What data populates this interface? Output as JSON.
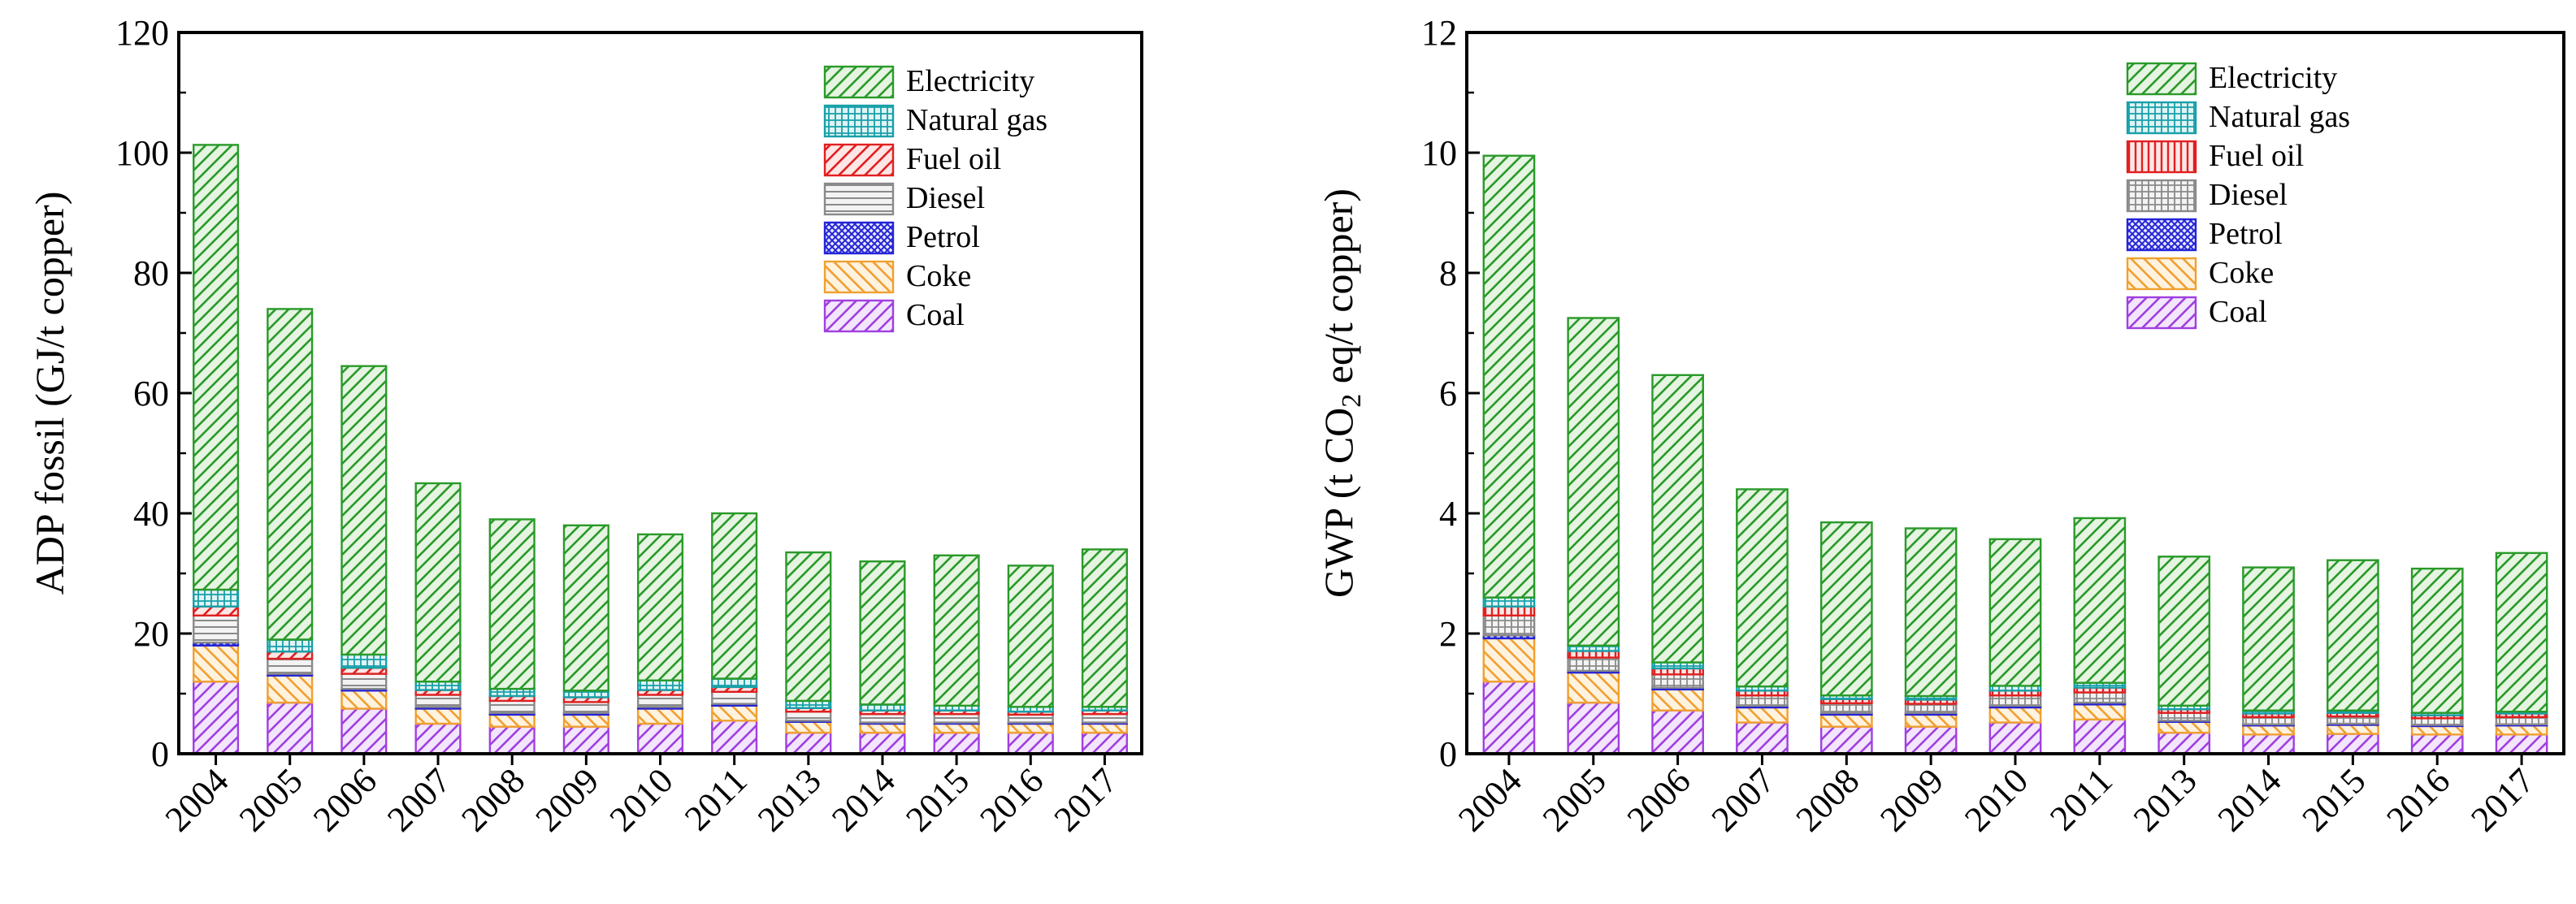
{
  "chart_data": [
    {
      "type": "bar",
      "stacked": true,
      "title": "",
      "ylabel": "ADP fossil (GJ/t copper)",
      "xlabel": "",
      "ylim": [
        0,
        120
      ],
      "yticks": [
        0,
        20,
        40,
        60,
        80,
        100,
        120
      ],
      "legend_position": "top-right",
      "categories": [
        "2004",
        "2005",
        "2006",
        "2007",
        "2008",
        "2009",
        "2010",
        "2011",
        "2013",
        "2014",
        "2015",
        "2016",
        "2017"
      ],
      "series": [
        {
          "name": "Coal",
          "values": [
            12.0,
            8.5,
            7.5,
            5.0,
            4.5,
            4.5,
            5.0,
            5.5,
            3.5,
            3.5,
            3.5,
            3.5,
            3.5
          ]
        },
        {
          "name": "Coke",
          "values": [
            6.0,
            4.5,
            3.0,
            2.5,
            2.0,
            2.0,
            2.5,
            2.5,
            1.8,
            1.5,
            1.5,
            1.5,
            1.5
          ]
        },
        {
          "name": "Petrol",
          "values": [
            0.5,
            0.3,
            0.3,
            0.3,
            0.3,
            0.3,
            0.3,
            0.3,
            0.2,
            0.2,
            0.2,
            0.2,
            0.2
          ]
        },
        {
          "name": "Diesel",
          "values": [
            4.5,
            2.5,
            2.5,
            2.0,
            2.0,
            1.8,
            2.0,
            2.0,
            1.5,
            1.4,
            1.4,
            1.3,
            1.4
          ]
        },
        {
          "name": "Fuel oil",
          "values": [
            1.5,
            1.2,
            1.0,
            0.8,
            0.8,
            0.8,
            0.8,
            0.8,
            0.6,
            0.6,
            0.6,
            0.5,
            0.6
          ]
        },
        {
          "name": "Natural gas",
          "values": [
            2.8,
            2.0,
            2.2,
            1.4,
            1.2,
            1.1,
            1.6,
            1.4,
            1.2,
            1.0,
            0.8,
            0.8,
            0.6
          ]
        },
        {
          "name": "Electricity",
          "values": [
            74.0,
            55.0,
            48.0,
            33.0,
            28.2,
            27.5,
            24.3,
            27.5,
            24.7,
            23.8,
            25.0,
            23.5,
            26.2
          ]
        }
      ]
    },
    {
      "type": "bar",
      "stacked": true,
      "title": "",
      "ylabel_prefix": "GWP (t CO",
      "ylabel_sub": "2",
      "ylabel_suffix": " eq/t copper)",
      "xlabel": "",
      "ylim": [
        0,
        12
      ],
      "yticks": [
        0,
        2,
        4,
        6,
        8,
        10,
        12
      ],
      "legend_position": "top-right",
      "categories": [
        "2004",
        "2005",
        "2006",
        "2007",
        "2008",
        "2009",
        "2010",
        "2011",
        "2013",
        "2014",
        "2015",
        "2016",
        "2017"
      ],
      "series": [
        {
          "name": "Coal",
          "values": [
            1.2,
            0.85,
            0.72,
            0.52,
            0.45,
            0.45,
            0.52,
            0.57,
            0.35,
            0.32,
            0.33,
            0.32,
            0.32
          ]
        },
        {
          "name": "Coke",
          "values": [
            0.72,
            0.5,
            0.35,
            0.25,
            0.2,
            0.2,
            0.25,
            0.25,
            0.18,
            0.15,
            0.15,
            0.14,
            0.15
          ]
        },
        {
          "name": "Petrol",
          "values": [
            0.05,
            0.03,
            0.03,
            0.03,
            0.03,
            0.03,
            0.03,
            0.03,
            0.02,
            0.02,
            0.02,
            0.02,
            0.02
          ]
        },
        {
          "name": "Diesel",
          "values": [
            0.33,
            0.22,
            0.22,
            0.17,
            0.16,
            0.15,
            0.17,
            0.17,
            0.13,
            0.12,
            0.12,
            0.11,
            0.12
          ]
        },
        {
          "name": "Fuel oil",
          "values": [
            0.15,
            0.11,
            0.1,
            0.08,
            0.07,
            0.07,
            0.08,
            0.08,
            0.06,
            0.06,
            0.06,
            0.05,
            0.06
          ]
        },
        {
          "name": "Natural gas",
          "values": [
            0.15,
            0.09,
            0.1,
            0.07,
            0.06,
            0.06,
            0.08,
            0.08,
            0.06,
            0.05,
            0.04,
            0.04,
            0.03
          ]
        },
        {
          "name": "Electricity",
          "values": [
            7.35,
            5.45,
            4.78,
            3.28,
            2.88,
            2.79,
            2.44,
            2.74,
            2.48,
            2.38,
            2.5,
            2.4,
            2.64
          ]
        }
      ]
    }
  ],
  "legend_styles": {
    "Electricity": {
      "stroke": "#2a9a2a",
      "fill": "#e6f4e2",
      "pattern": "diag"
    },
    "Natural gas": {
      "stroke": "#17a0a8",
      "fill": "#e0f4f5",
      "pattern": "grid"
    },
    "Fuel oil": {
      "stroke": "#e02020",
      "fill": "#fde6e6",
      "pattern": "diag"
    },
    "Diesel": {
      "stroke": "#8a8a8a",
      "fill": "#f3f3f3",
      "pattern": "hlines"
    },
    "Petrol": {
      "stroke": "#2424d8",
      "fill": "#e8e8fb",
      "pattern": "dense"
    },
    "Coke": {
      "stroke": "#f0a030",
      "fill": "#fff2df",
      "pattern": "backdiag"
    },
    "Coal": {
      "stroke": "#a040e0",
      "fill": "#f3e6fc",
      "pattern": "diag"
    }
  },
  "legend_styles_right": {
    "Fuel oil": {
      "pattern": "vlines"
    },
    "Diesel": {
      "pattern": "grid"
    }
  }
}
